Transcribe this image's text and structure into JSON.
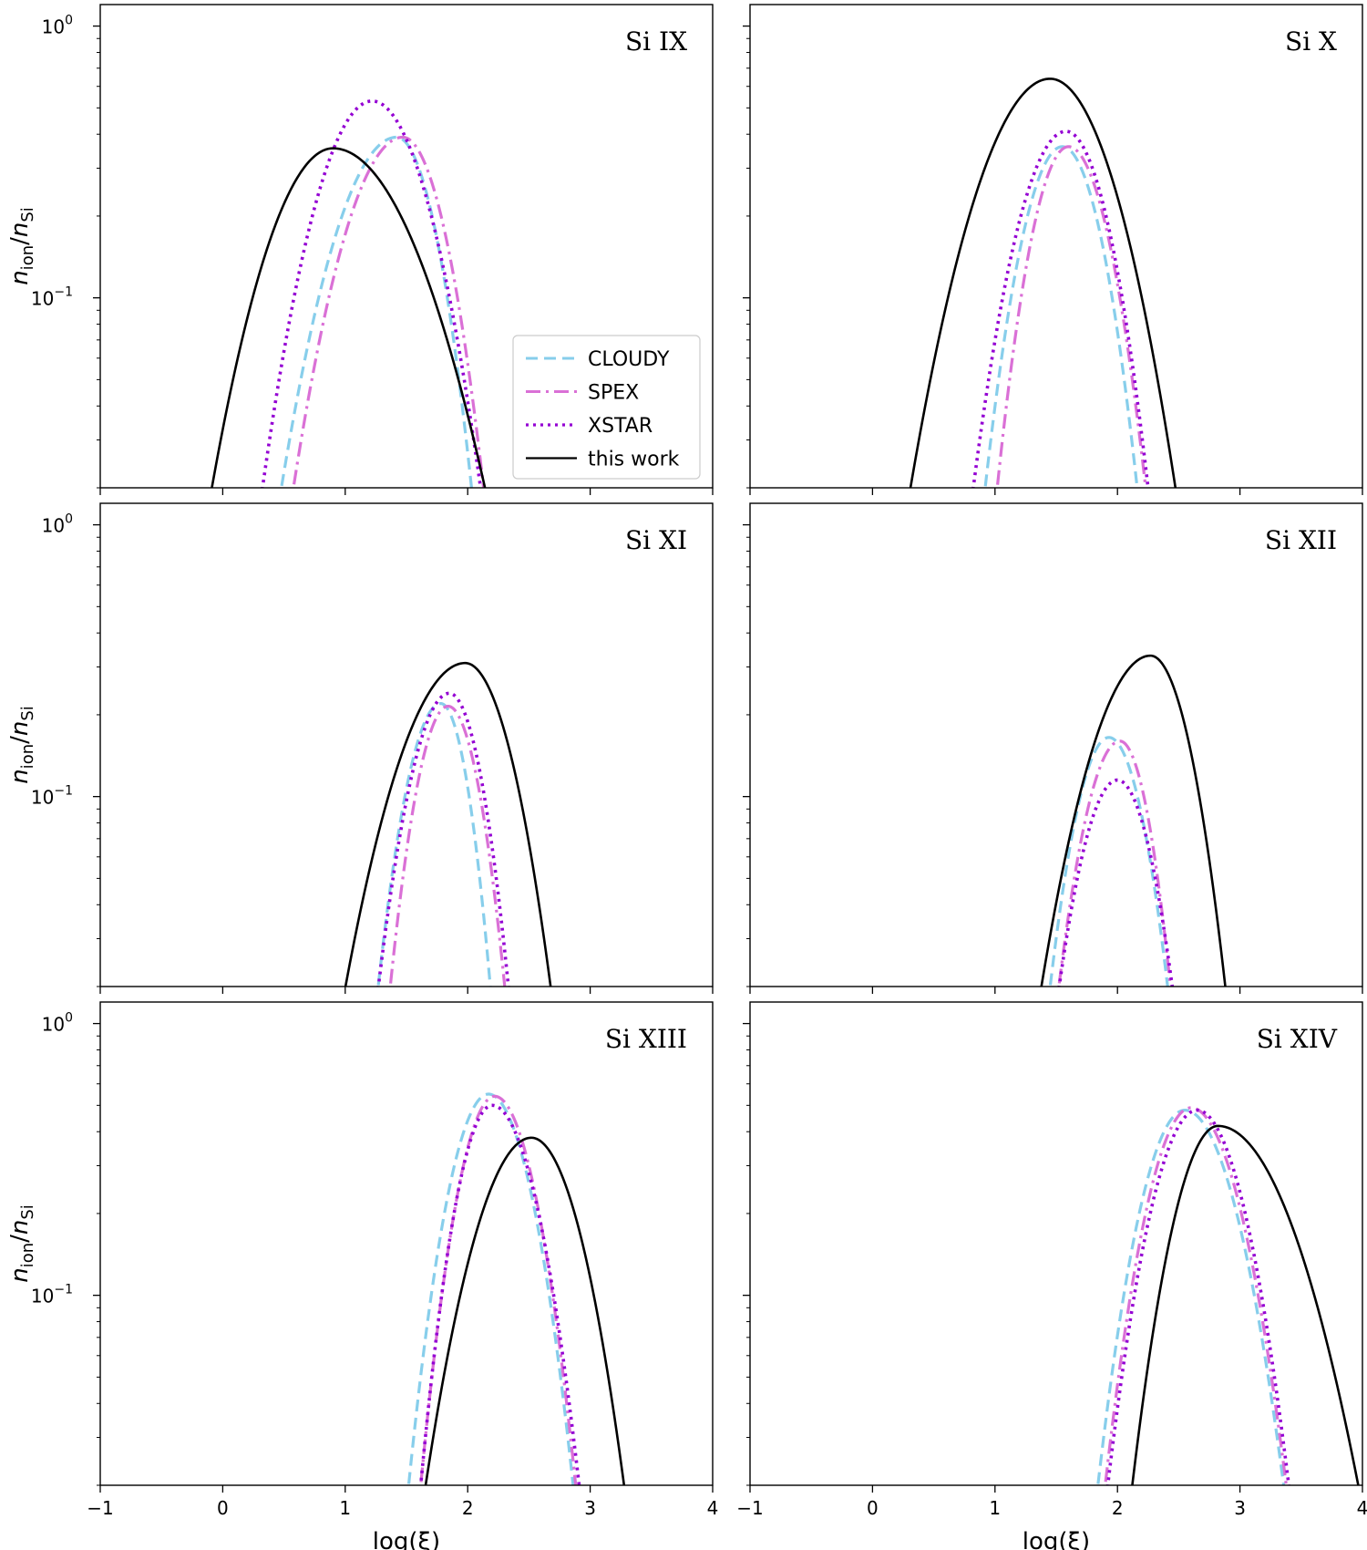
{
  "chart_data": {
    "type": "line",
    "xlim": [
      -1,
      4
    ],
    "ylim": [
      0.02,
      1.2
    ],
    "yscale": "log",
    "xlabel": "log(ξ)",
    "ylabel": "n_ion/n_Si",
    "xticks": [
      {
        "value": -1,
        "label": "−1"
      },
      {
        "value": 0,
        "label": "0"
      },
      {
        "value": 1,
        "label": "1"
      },
      {
        "value": 2,
        "label": "2"
      },
      {
        "value": 3,
        "label": "3"
      },
      {
        "value": 4,
        "label": "4"
      }
    ],
    "yticks": [
      {
        "value": 1,
        "base": "10",
        "exp": "0"
      },
      {
        "value": 0.1,
        "base": "10",
        "exp": "−1"
      }
    ],
    "legend": {
      "location": "lower-right of first panel",
      "entries": [
        {
          "label": "CLOUDY",
          "color": "#87CEEB",
          "style": "dashed"
        },
        {
          "label": "SPEX",
          "color": "#DA70D6",
          "style": "dashdot"
        },
        {
          "label": "XSTAR",
          "color": "#9400D3",
          "style": "dotted"
        },
        {
          "label": "this work",
          "color": "#000000",
          "style": "solid"
        }
      ]
    },
    "series_styles": {
      "CLOUDY": {
        "color": "#87CEEB",
        "dash": "13,7",
        "width": 3.2
      },
      "SPEX": {
        "color": "#DA70D6",
        "dash": "16,6,3,6",
        "width": 3.2
      },
      "XSTAR": {
        "color": "#9400D3",
        "dash": "3,5",
        "width": 3.6
      },
      "this work": {
        "color": "#000000",
        "dash": "",
        "width": 2.6
      }
    },
    "panels": [
      {
        "title": "Si IX",
        "series": [
          {
            "name": "CLOUDY",
            "peak_x": 1.42,
            "peak_y": 0.39,
            "left_x": 0.45,
            "right_x": 2.05
          },
          {
            "name": "SPEX",
            "peak_x": 1.47,
            "peak_y": 0.39,
            "left_x": 0.55,
            "right_x": 2.15
          },
          {
            "name": "XSTAR",
            "peak_x": 1.22,
            "peak_y": 0.53,
            "left_x": 0.3,
            "right_x": 2.13
          },
          {
            "name": "this work",
            "peak_x": 0.9,
            "peak_y": 0.355,
            "left_x": -0.12,
            "right_x": 2.18
          }
        ]
      },
      {
        "title": "Si X",
        "series": [
          {
            "name": "CLOUDY",
            "peak_x": 1.55,
            "peak_y": 0.36,
            "left_x": 0.9,
            "right_x": 2.18
          },
          {
            "name": "SPEX",
            "peak_x": 1.6,
            "peak_y": 0.36,
            "left_x": 1.0,
            "right_x": 2.25
          },
          {
            "name": "XSTAR",
            "peak_x": 1.58,
            "peak_y": 0.41,
            "left_x": 0.8,
            "right_x": 2.27
          },
          {
            "name": "this work",
            "peak_x": 1.45,
            "peak_y": 0.64,
            "left_x": 0.28,
            "right_x": 2.5
          }
        ]
      },
      {
        "title": "Si XI",
        "series": [
          {
            "name": "CLOUDY",
            "peak_x": 1.78,
            "peak_y": 0.22,
            "left_x": 1.25,
            "right_x": 2.2
          },
          {
            "name": "SPEX",
            "peak_x": 1.84,
            "peak_y": 0.215,
            "left_x": 1.35,
            "right_x": 2.32
          },
          {
            "name": "XSTAR",
            "peak_x": 1.85,
            "peak_y": 0.24,
            "left_x": 1.25,
            "right_x": 2.35
          },
          {
            "name": "this work",
            "peak_x": 1.98,
            "peak_y": 0.31,
            "left_x": 0.97,
            "right_x": 2.7
          }
        ]
      },
      {
        "title": "Si XII",
        "series": [
          {
            "name": "CLOUDY",
            "peak_x": 1.93,
            "peak_y": 0.165,
            "left_x": 1.43,
            "right_x": 2.43
          },
          {
            "name": "SPEX",
            "peak_x": 2.02,
            "peak_y": 0.16,
            "left_x": 1.5,
            "right_x": 2.45
          },
          {
            "name": "XSTAR",
            "peak_x": 2.0,
            "peak_y": 0.115,
            "left_x": 1.5,
            "right_x": 2.47
          },
          {
            "name": "this work",
            "peak_x": 2.27,
            "peak_y": 0.33,
            "left_x": 1.35,
            "right_x": 2.9
          }
        ]
      },
      {
        "title": "Si XIII",
        "series": [
          {
            "name": "CLOUDY",
            "peak_x": 2.17,
            "peak_y": 0.55,
            "left_x": 1.5,
            "right_x": 2.88
          },
          {
            "name": "SPEX",
            "peak_x": 2.22,
            "peak_y": 0.54,
            "left_x": 1.6,
            "right_x": 2.9
          },
          {
            "name": "XSTAR",
            "peak_x": 2.2,
            "peak_y": 0.5,
            "left_x": 1.6,
            "right_x": 2.93
          },
          {
            "name": "this work",
            "peak_x": 2.52,
            "peak_y": 0.38,
            "left_x": 1.63,
            "right_x": 3.3
          }
        ]
      },
      {
        "title": "Si XIV",
        "series": [
          {
            "name": "CLOUDY",
            "peak_x": 2.55,
            "peak_y": 0.48,
            "left_x": 1.82,
            "right_x": 3.38
          },
          {
            "name": "SPEX",
            "peak_x": 2.6,
            "peak_y": 0.49,
            "left_x": 1.88,
            "right_x": 3.4
          },
          {
            "name": "XSTAR",
            "peak_x": 2.65,
            "peak_y": 0.48,
            "left_x": 1.9,
            "right_x": 3.42
          },
          {
            "name": "this work",
            "peak_x": 2.82,
            "peak_y": 0.42,
            "left_x": 2.1,
            "right_x": 4.0
          }
        ]
      }
    ]
  }
}
